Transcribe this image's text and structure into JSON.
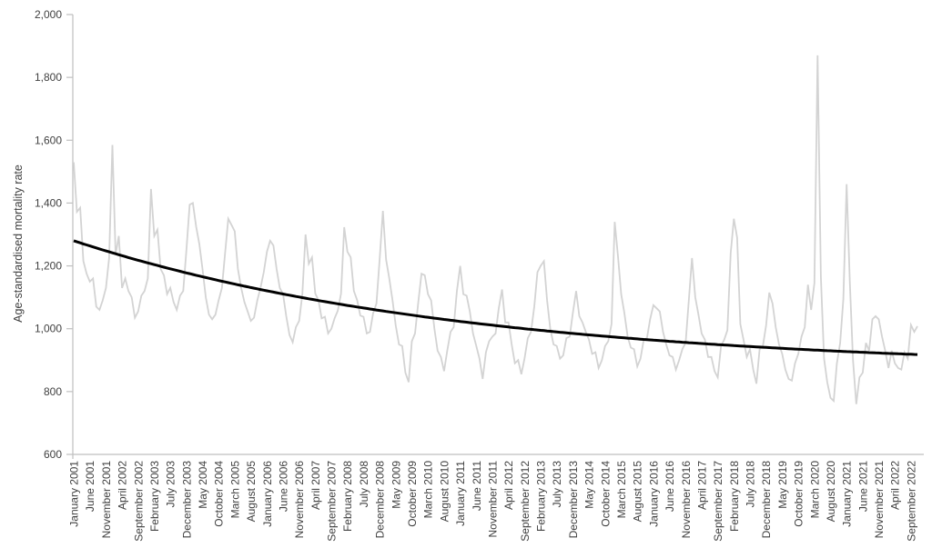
{
  "chart": {
    "y_axis_title": "Age-standardised mortality rate",
    "colors": {
      "series_line": "#d3d3d3",
      "trend_line": "#000000",
      "axis_line": "#bfbfbf",
      "tick_text": "#404040"
    }
  },
  "chart_data": {
    "type": "line",
    "title": "",
    "xlabel": "",
    "ylabel": "Age-standardised mortality rate",
    "ylim": [
      600,
      2000
    ],
    "y_tick_step": 200,
    "y_tick_values": [
      600,
      800,
      1000,
      1200,
      1400,
      1600,
      1800,
      2000
    ],
    "y_tick_labels": [
      "600",
      "800",
      "1,000",
      "1,200",
      "1,400",
      "1,600",
      "1,800",
      "2,000"
    ],
    "grid": false,
    "legend": "none",
    "x_start": "January 2001",
    "x_end": "November 2022",
    "n_points": 263,
    "x_tick_every_n_months": 5,
    "x_tick_labels": [
      "January 2001",
      "June 2001",
      "November 2001",
      "April 2002",
      "September 2002",
      "February 2003",
      "July 2003",
      "December 2003",
      "May 2004",
      "October 2004",
      "March 2005",
      "August 2005",
      "January 2006",
      "June 2006",
      "November 2006",
      "April 2007",
      "September 2007",
      "February 2008",
      "July 2008",
      "December 2008",
      "May 2009",
      "October 2009",
      "March 2010",
      "August 2010",
      "January 2011",
      "June 2011",
      "November 2011",
      "April 2012",
      "September 2012",
      "February 2013",
      "July 2013",
      "December 2013",
      "May 2014",
      "October 2014",
      "March 2015",
      "August 2015",
      "January 2016",
      "June 2016",
      "November 2016",
      "April 2017",
      "September 2017",
      "February 2018",
      "July 2018",
      "December 2018",
      "May 2019",
      "October 2019",
      "March 2020",
      "August 2020",
      "January 2021",
      "June 2021",
      "November 2021",
      "April 2022",
      "September 2022"
    ],
    "series": [
      {
        "name": "monthly-age-standardised-mortality-rate",
        "color": "#d3d3d3",
        "values": [
          1530,
          1372,
          1385,
          1215,
          1175,
          1150,
          1160,
          1070,
          1060,
          1090,
          1130,
          1225,
          1585,
          1235,
          1295,
          1130,
          1160,
          1120,
          1100,
          1035,
          1055,
          1105,
          1120,
          1160,
          1445,
          1295,
          1315,
          1190,
          1170,
          1110,
          1130,
          1085,
          1060,
          1105,
          1120,
          1250,
          1395,
          1400,
          1325,
          1270,
          1190,
          1100,
          1045,
          1030,
          1045,
          1090,
          1130,
          1240,
          1350,
          1330,
          1310,
          1190,
          1130,
          1085,
          1055,
          1025,
          1035,
          1090,
          1130,
          1180,
          1245,
          1280,
          1265,
          1190,
          1130,
          1110,
          1040,
          980,
          957,
          1005,
          1025,
          1110,
          1300,
          1207,
          1227,
          1112,
          1091,
          1033,
          1038,
          985,
          1000,
          1033,
          1057,
          1112,
          1323,
          1245,
          1227,
          1120,
          1091,
          1042,
          1038,
          985,
          990,
          1050,
          1080,
          1220,
          1375,
          1220,
          1160,
          1090,
          1010,
          950,
          945,
          860,
          830,
          960,
          985,
          1085,
          1175,
          1170,
          1110,
          1090,
          1000,
          930,
          910,
          865,
          930,
          990,
          1005,
          1120,
          1200,
          1110,
          1105,
          1055,
          985,
          945,
          905,
          840,
          925,
          960,
          975,
          985,
          1065,
          1125,
          1020,
          1020,
          950,
          890,
          900,
          855,
          905,
          970,
          990,
          1070,
          1180,
          1200,
          1215,
          1090,
          1000,
          950,
          945,
          905,
          915,
          970,
          975,
          1050,
          1120,
          1040,
          1020,
          990,
          965,
          920,
          925,
          875,
          900,
          945,
          960,
          1015,
          1340,
          1230,
          1110,
          1050,
          975,
          940,
          935,
          880,
          905,
          965,
          970,
          1030,
          1075,
          1065,
          1055,
          990,
          950,
          915,
          910,
          870,
          900,
          935,
          955,
          1090,
          1225,
          1100,
          1045,
          985,
          965,
          910,
          910,
          865,
          845,
          945,
          965,
          995,
          1240,
          1350,
          1290,
          1015,
          965,
          910,
          935,
          870,
          825,
          935,
          945,
          1010,
          1115,
          1080,
          1005,
          950,
          920,
          870,
          840,
          835,
          890,
          920,
          975,
          1005,
          1140,
          1060,
          1145,
          1870,
          1165,
          905,
          830,
          780,
          770,
          890,
          955,
          1095,
          1460,
          1150,
          900,
          760,
          845,
          860,
          955,
          930,
          1030,
          1040,
          1030,
          975,
          930,
          875,
          930,
          890,
          875,
          870,
          925,
          905,
          1012,
          990,
          1008
        ]
      },
      {
        "name": "fitted-trend-curve",
        "color": "#000000",
        "fit": {
          "type": "exponential_decay",
          "formula": "value(t) = a + b * exp(-c * t)",
          "a": 870,
          "b": 410,
          "c": 0.0082
        },
        "start_value": 1280,
        "end_value": 918
      }
    ]
  }
}
